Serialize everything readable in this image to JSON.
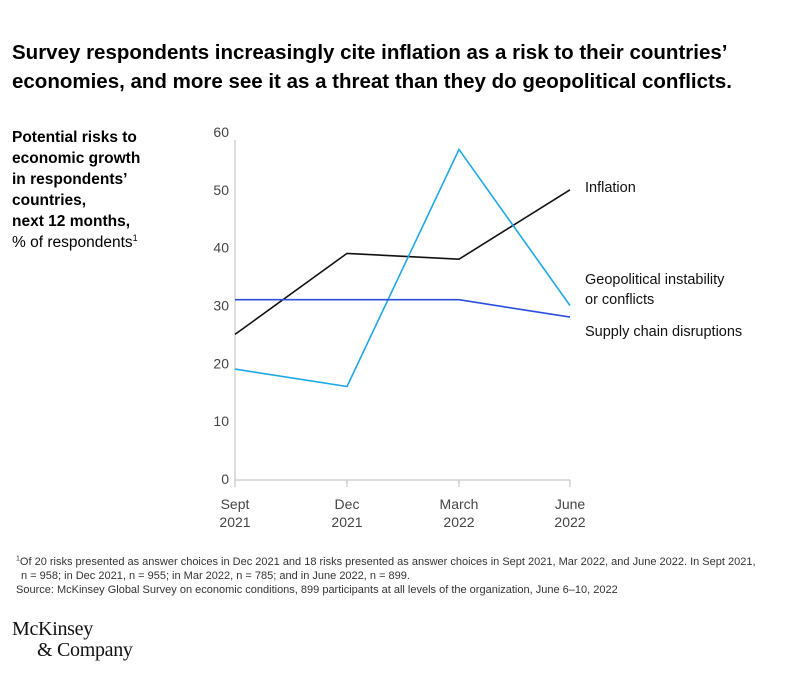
{
  "title": {
    "line1": "Survey respondents increasingly cite inflation as a risk to their countries’",
    "line2": "economies, and more see it as a threat than they do geopolitical conflicts."
  },
  "subtitle": {
    "line1": "Potential risks to",
    "line2": "economic growth",
    "line3": "in respondents’",
    "line4": "countries,",
    "line5": "next 12 months,",
    "line6": "% of respondents",
    "note_mark": "1"
  },
  "chart_data": {
    "type": "line",
    "title": "Potential risks to economic growth in respondents’ countries, next 12 months, % of respondents",
    "categories": [
      {
        "line1": "Sept",
        "line2": "2021"
      },
      {
        "line1": "Dec",
        "line2": "2021"
      },
      {
        "line1": "March",
        "line2": "2022"
      },
      {
        "line1": "June",
        "line2": "2022"
      }
    ],
    "ylim": [
      0,
      60
    ],
    "yticks": [
      0,
      10,
      20,
      30,
      40,
      50,
      60
    ],
    "grid": false,
    "series": [
      {
        "name": "Inflation",
        "label_lines": [
          "Inflation"
        ],
        "color": "#111111",
        "values": [
          25,
          39,
          38,
          50
        ]
      },
      {
        "name": "Geopolitical instability or conflicts",
        "label_lines": [
          "Geopolitical instability",
          "or conflicts"
        ],
        "color": "#1fa8e6",
        "values": [
          19,
          16,
          57,
          30
        ]
      },
      {
        "name": "Supply chain disruptions",
        "label_lines": [
          "Supply chain disruptions"
        ],
        "color": "#2a50dc",
        "values": [
          31,
          31,
          31,
          28
        ]
      }
    ]
  },
  "footnote": {
    "mark": "1",
    "line1": "Of 20 risks presented as answer choices in Dec 2021 and 18 risks presented as answer choices in Sept 2021, Mar 2022, and June 2022. In Sept 2021,",
    "line2": "n = 958; in Dec 2021, n = 955; in Mar 2022, n = 785; and in June 2022, n = 899.",
    "source": "Source: McKinsey Global Survey on economic conditions, 899 participants at all levels of the organization, June 6–10, 2022"
  },
  "logo": {
    "line1": "McKinsey",
    "line2": "& Company"
  }
}
